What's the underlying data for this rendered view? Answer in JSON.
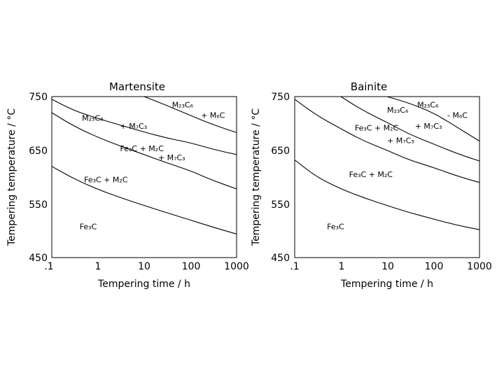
{
  "chart_data": [
    {
      "type": "line",
      "title": "Martensite",
      "xlabel": "Tempering time / h",
      "ylabel": "Tempering temperature / °C",
      "xscale": "log",
      "xlim": [
        0.1,
        1000
      ],
      "ylim": [
        450,
        750
      ],
      "xticks": [
        ".1",
        "1",
        "10",
        "100",
        "1000"
      ],
      "yticks": [
        "450",
        "550",
        "650",
        "750"
      ],
      "grid": false,
      "series": [
        {
          "x": [
            0.1,
            0.3,
            1,
            3,
            10,
            30,
            100,
            300,
            1000
          ],
          "y": [
            620,
            597,
            577,
            562,
            547,
            534,
            520,
            507,
            494
          ]
        },
        {
          "x": [
            0.1,
            0.3,
            1,
            3,
            10,
            30,
            100,
            300,
            1000
          ],
          "y": [
            720,
            695,
            674,
            658,
            642,
            627,
            612,
            594,
            578
          ]
        },
        {
          "x": [
            0.1,
            0.3,
            1,
            3,
            10,
            30,
            100,
            300,
            1000
          ],
          "y": [
            745,
            724,
            709,
            697,
            684,
            673,
            664,
            652,
            642
          ]
        },
        {
          "x": [
            10,
            30,
            100,
            300,
            1000
          ],
          "y": [
            750,
            734,
            715,
            698,
            683
          ]
        }
      ],
      "annotations": [
        {
          "text": "M₂₃C₆",
          "x": 0.45,
          "y": 705
        },
        {
          "text": "+ M₇C₃",
          "x": 3.0,
          "y": 690
        },
        {
          "text": "M₂₃C₆",
          "x": 40,
          "y": 730
        },
        {
          "text": "+ M₆C",
          "x": 170,
          "y": 710
        },
        {
          "text": "Fe₃C + M₂C",
          "x": 3.0,
          "y": 648
        },
        {
          "text": "+ M₇C₃",
          "x": 20,
          "y": 631
        },
        {
          "text": "Fe₃C + M₂C",
          "x": 0.5,
          "y": 590
        },
        {
          "text": "Fe₃C",
          "x": 0.4,
          "y": 503
        }
      ]
    },
    {
      "type": "line",
      "title": "Bainite",
      "xlabel": "Tempering time / h",
      "ylabel": "Tempering temperature / °C",
      "xscale": "log",
      "xlim": [
        0.1,
        1000
      ],
      "ylim": [
        450,
        750
      ],
      "xticks": [
        ".1",
        "1",
        "10",
        "100",
        "1000"
      ],
      "yticks": [
        "450",
        "550",
        "650",
        "750"
      ],
      "grid": false,
      "series": [
        {
          "x": [
            0.1,
            0.3,
            1,
            3,
            10,
            30,
            100,
            300,
            1000
          ],
          "y": [
            632,
            600,
            578,
            562,
            547,
            534,
            522,
            511,
            502
          ]
        },
        {
          "x": [
            0.1,
            0.3,
            1,
            3,
            10,
            30,
            100,
            300,
            1000
          ],
          "y": [
            745,
            715,
            690,
            668,
            650,
            632,
            618,
            603,
            590
          ]
        },
        {
          "x": [
            1,
            3,
            10,
            30,
            100,
            300,
            1000
          ],
          "y": [
            750,
            724,
            702,
            680,
            662,
            645,
            630
          ]
        },
        {
          "x": [
            10,
            30,
            100,
            300,
            1000
          ],
          "y": [
            750,
            738,
            720,
            695,
            667
          ]
        }
      ],
      "annotations": [
        {
          "text": "M₂₃C₆",
          "x": 10,
          "y": 720
        },
        {
          "text": "M₂₃C₆",
          "x": 45,
          "y": 730
        },
        {
          "text": "- M₆C",
          "x": 200,
          "y": 710
        },
        {
          "text": "Fe₃C + M₂C",
          "x": 2.0,
          "y": 687
        },
        {
          "text": "+ M₇C₃",
          "x": 40,
          "y": 690
        },
        {
          "text": "+ M₇C₃",
          "x": 10,
          "y": 663
        },
        {
          "text": "Fe₃C + M₂C",
          "x": 1.5,
          "y": 600
        },
        {
          "text": "Fe₃C",
          "x": 0.5,
          "y": 503
        }
      ]
    }
  ]
}
